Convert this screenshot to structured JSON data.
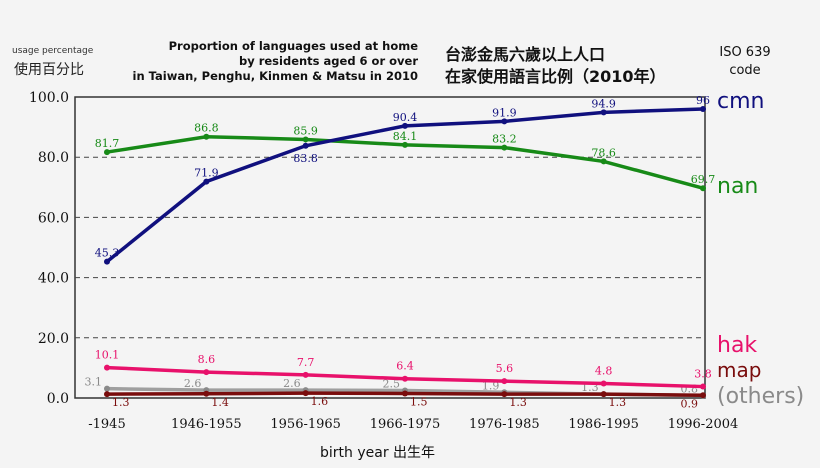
{
  "chart_data": {
    "type": "line",
    "title": "Proportion of languages used at home by residents aged 6 or over in Taiwan, Penghu, Kinmen & Matsu in 2010",
    "title_lines": [
      "Proportion of languages used at home",
      "by residents aged 6 or over",
      "in Taiwan, Penghu, Kinmen & Matsu in 2010"
    ],
    "title_zh_lines": [
      "台澎金馬六歲以上人口",
      "在家使用語言比例（2010年）"
    ],
    "ylabel": "usage percentage",
    "ylabel_zh": "使用百分比",
    "xlabel": "birth year 出生年",
    "legend_header": [
      "ISO 639",
      "code"
    ],
    "ylim": [
      0,
      100
    ],
    "yticks": [
      "0.0",
      "20.0",
      "40.0",
      "60.0",
      "80.0",
      "100.0"
    ],
    "grid": "dashed horizontal",
    "legend": "right",
    "categories": [
      "-1945",
      "1946-1955",
      "1956-1965",
      "1966-1975",
      "1976-1985",
      "1986-1995",
      "1996-2004"
    ],
    "series": [
      {
        "name": "cmn",
        "color": "#10107e",
        "values": [
          45.3,
          71.9,
          83.8,
          90.4,
          91.9,
          94.9,
          96
        ]
      },
      {
        "name": "nan",
        "color": "#178a17",
        "values": [
          81.7,
          86.8,
          85.9,
          84.1,
          83.2,
          78.6,
          69.7
        ]
      },
      {
        "name": "hak",
        "color": "#e8116b",
        "values": [
          10.1,
          8.6,
          7.7,
          6.4,
          5.6,
          4.8,
          3.8
        ]
      },
      {
        "name": "map",
        "color": "#7a0d0d",
        "values": [
          1.3,
          1.4,
          1.6,
          1.5,
          1.3,
          1.3,
          0.9
        ]
      },
      {
        "name": "(others)",
        "color": "#8a8a8a",
        "values": [
          3.1,
          2.6,
          2.6,
          2.5,
          1.9,
          1.3,
          0.8
        ]
      }
    ]
  }
}
